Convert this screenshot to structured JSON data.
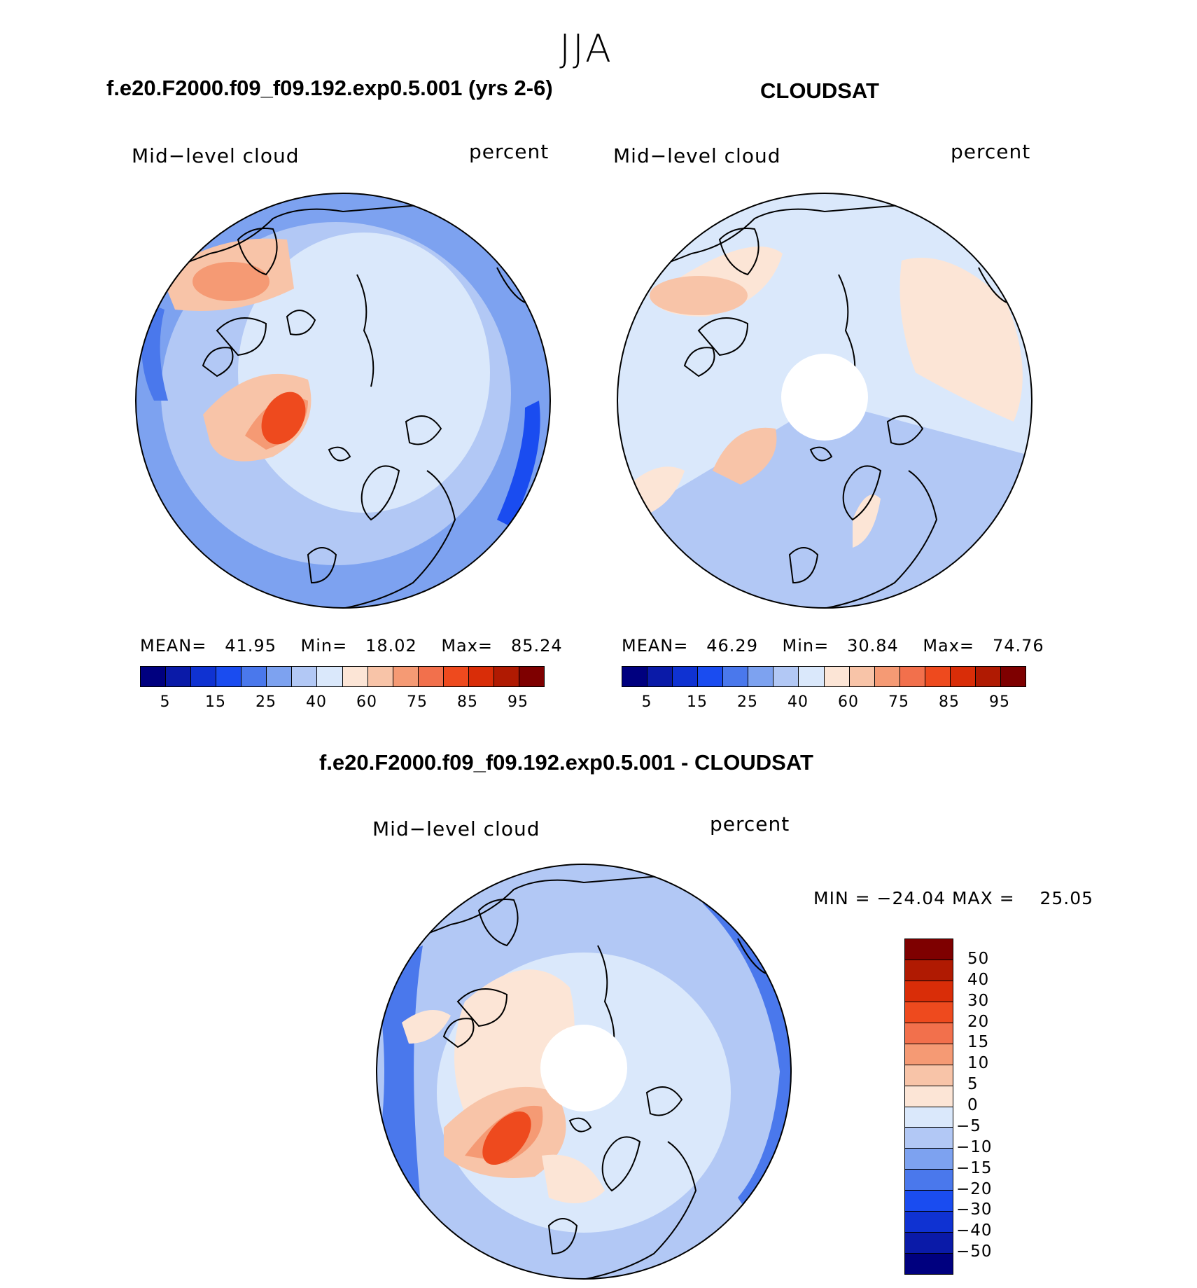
{
  "super_title": "JJA",
  "panels": {
    "model": {
      "title": "f.e20.F2000.f09_f09.192.exp0.5.001 (yrs 2-6)",
      "left_label": "Mid−level cloud",
      "right_label": "percent",
      "stats": {
        "mean_label": "MEAN=",
        "mean": "41.95",
        "min_label": "Min=",
        "min": "18.02",
        "max_label": "Max=",
        "max": "85.24"
      }
    },
    "obs": {
      "title": "CLOUDSAT",
      "left_label": "Mid−level cloud",
      "right_label": "percent",
      "stats": {
        "mean_label": "MEAN=",
        "mean": "46.29",
        "min_label": "Min=",
        "min": "30.84",
        "max_label": "Max=",
        "max": "74.76"
      }
    },
    "diff": {
      "title": "f.e20.F2000.f09_f09.192.exp0.5.001 - CLOUDSAT",
      "left_label": "Mid−level cloud",
      "right_label": "percent",
      "minmax": {
        "min_label": "MIN  =",
        "min": "−24.04",
        "max_label": "MAX  =",
        "max": "25.05"
      }
    }
  },
  "chart_data": [
    {
      "type": "heatmap",
      "projection": "north polar stereographic",
      "title": "f.e20.F2000.f09_f09.192.exp0.5.001 (yrs 2-6)",
      "variable": "Mid-level cloud",
      "units": "percent",
      "mean": 41.95,
      "min": 18.02,
      "max": 85.24,
      "colorbar_levels": [
        5,
        10,
        15,
        20,
        25,
        30,
        40,
        50,
        60,
        70,
        75,
        80,
        85,
        90,
        95
      ],
      "colorbar_tick_labels": [
        "5",
        "15",
        "25",
        "40",
        "60",
        "75",
        "85",
        "95"
      ]
    },
    {
      "type": "heatmap",
      "projection": "north polar stereographic",
      "title": "CLOUDSAT",
      "variable": "Mid-level cloud",
      "units": "percent",
      "mean": 46.29,
      "min": 30.84,
      "max": 74.76,
      "colorbar_levels": [
        5,
        10,
        15,
        20,
        25,
        30,
        40,
        50,
        60,
        70,
        75,
        80,
        85,
        90,
        95
      ],
      "colorbar_tick_labels": [
        "5",
        "15",
        "25",
        "40",
        "60",
        "75",
        "85",
        "95"
      ]
    },
    {
      "type": "heatmap",
      "projection": "north polar stereographic",
      "title": "f.e20.F2000.f09_f09.192.exp0.5.001 - CLOUDSAT",
      "variable": "Mid-level cloud",
      "units": "percent",
      "min": -24.04,
      "max": 25.05,
      "colorbar_tick_labels": [
        "50",
        "40",
        "30",
        "20",
        "15",
        "10",
        "5",
        "0",
        "−5",
        "−10",
        "−15",
        "−20",
        "−30",
        "−40",
        "−50"
      ]
    }
  ],
  "colors": {
    "palette16": [
      "#00007f",
      "#0a1aa8",
      "#0f32d2",
      "#1a4cf0",
      "#4a78ec",
      "#7da2f0",
      "#b2c8f5",
      "#dae8fb",
      "#fce5d6",
      "#f8c4a8",
      "#f59a74",
      "#f2704c",
      "#ee4a1e",
      "#d92d08",
      "#b01a02",
      "#7e0000"
    ],
    "ocean_light": "#dae8fb",
    "ocean_mid": "#b2c8f5",
    "ocean_deep": "#7da2f0",
    "land_warm": "#fce5d6",
    "land_warmer": "#f8c4a8",
    "hot": "#f59a74",
    "hotter": "#ee4a1e",
    "missing": "#ffffff",
    "coast": "#000000"
  }
}
